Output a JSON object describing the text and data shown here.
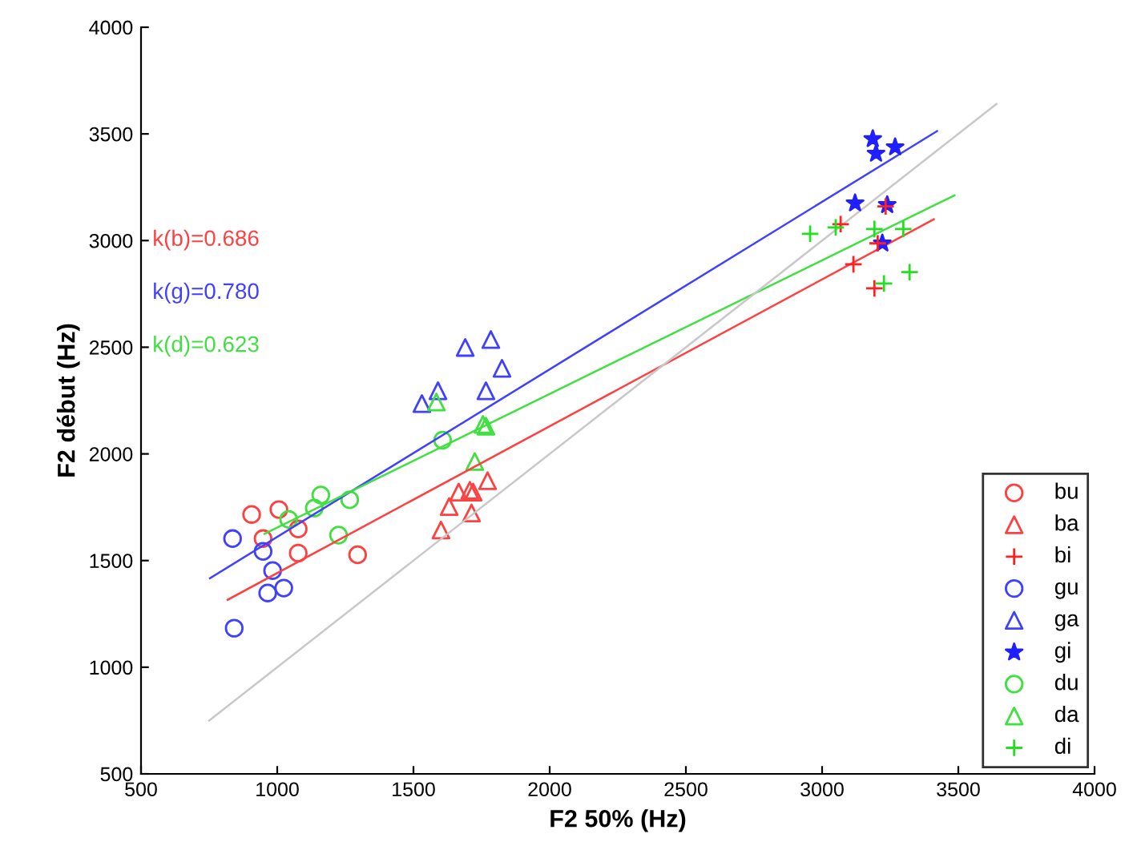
{
  "chart_data": {
    "type": "scatter",
    "xlabel": "F2 50% (Hz)",
    "ylabel": "F2 début (Hz)",
    "xlim": [
      500,
      4000
    ],
    "ylim": [
      500,
      4000
    ],
    "xticks": [
      500,
      1000,
      1500,
      2000,
      2500,
      3000,
      3500,
      4000
    ],
    "yticks": [
      500,
      1000,
      1500,
      2000,
      2500,
      3000,
      3500,
      4000
    ],
    "grid": false,
    "legend": "bottom right",
    "annotations": [
      "k(b)=0.686",
      "k(g)=0.780",
      "k(d)=0.623"
    ],
    "series": [
      {
        "name": "bu",
        "color": "#ff4040",
        "marker": "circle",
        "x": [
          906,
          1006,
          948,
          1077,
          1077,
          1295
        ],
        "values": [
          1716,
          1739,
          1603,
          1648,
          1535,
          1527
        ]
      },
      {
        "name": "ba",
        "color": "#ff4040",
        "marker": "triangle",
        "x": [
          1601,
          1631,
          1666,
          1707,
          1719,
          1713,
          1772
        ],
        "values": [
          1643,
          1753,
          1821,
          1829,
          1821,
          1723,
          1874
        ]
      },
      {
        "name": "bi",
        "color": "#ff2020",
        "marker": "cross",
        "x": [
          3233,
          3068,
          3204,
          3115,
          3192
        ],
        "values": [
          3160,
          3077,
          2987,
          2889,
          2776
        ]
      },
      {
        "name": "gu",
        "color": "#4040ff",
        "marker": "circle",
        "x": [
          836,
          948,
          983,
          965,
          1024,
          842
        ],
        "values": [
          1603,
          1543,
          1453,
          1348,
          1371,
          1183
        ]
      },
      {
        "name": "ga",
        "color": "#4040ff",
        "marker": "triangle",
        "x": [
          1690,
          1784,
          1825,
          1766,
          1590,
          1531
        ],
        "values": [
          2499,
          2536,
          2401,
          2296,
          2296,
          2236
        ]
      },
      {
        "name": "gi",
        "color": "#2020ff",
        "marker": "star",
        "x": [
          3186,
          3198,
          3268,
          3121,
          3239,
          3221
        ],
        "values": [
          3476,
          3408,
          3438,
          3175,
          3167,
          2987
        ]
      },
      {
        "name": "du",
        "color": "#40e040",
        "marker": "circle",
        "x": [
          1042,
          1136,
          1160,
          1266,
          1225,
          1607
        ],
        "values": [
          1693,
          1746,
          1807,
          1785,
          1619,
          2064
        ]
      },
      {
        "name": "da",
        "color": "#40e040",
        "marker": "triangle",
        "x": [
          1584,
          1755,
          1766,
          1725
        ],
        "values": [
          2243,
          2138,
          2130,
          1964
        ]
      },
      {
        "name": "di",
        "color": "#20e020",
        "marker": "cross",
        "x": [
          2956,
          3050,
          3192,
          3298,
          3227,
          3321
        ],
        "values": [
          3032,
          3062,
          3054,
          3054,
          2799,
          2852
        ]
      },
      {
        "type": "line",
        "color": "#ff4040",
        "x": [
          818,
          3410
        ],
        "values": [
          1316,
          3100
        ]
      },
      {
        "type": "line",
        "color": "#4040ff",
        "x": [
          753,
          3422
        ],
        "values": [
          1417,
          3513
        ]
      },
      {
        "type": "line",
        "color": "#40e040",
        "x": [
          953,
          3486
        ],
        "values": [
          1625,
          3212
        ]
      },
      {
        "type": "line",
        "color": "#c8c8c8",
        "x": [
          750,
          3640
        ],
        "values": [
          750,
          3640
        ]
      }
    ]
  }
}
